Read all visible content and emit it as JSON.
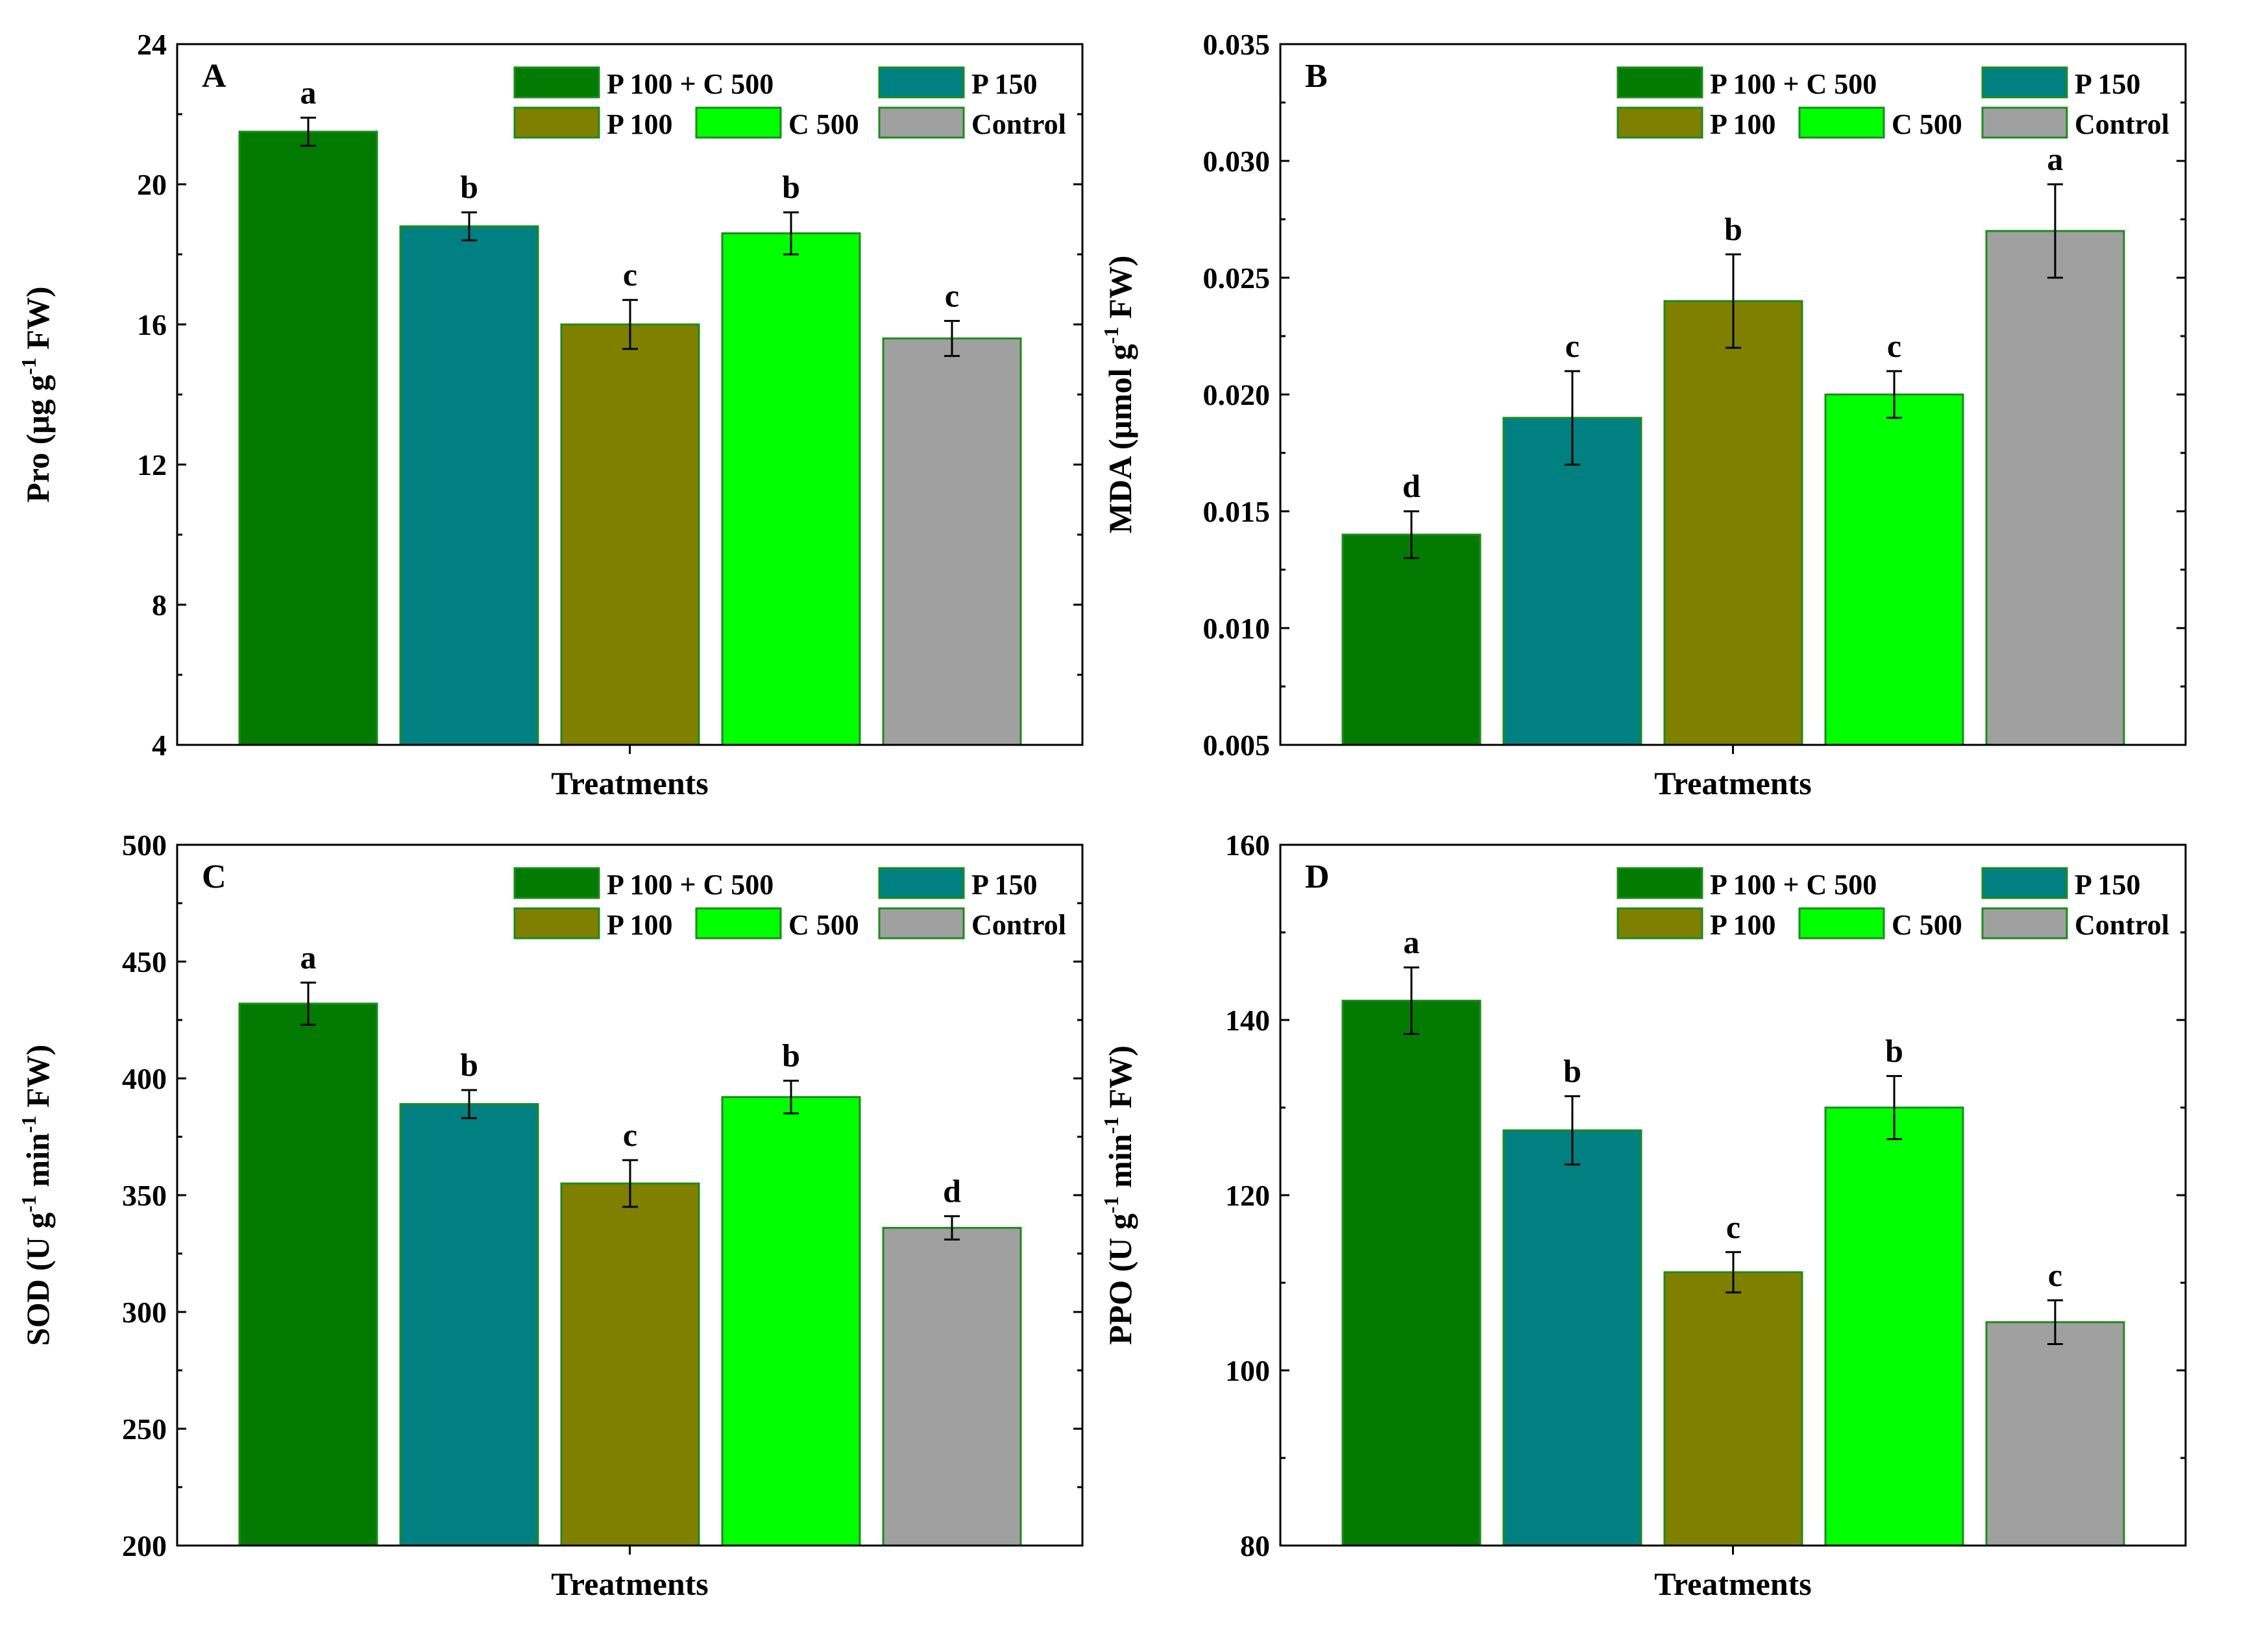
{
  "colors": {
    "P 100 + C 500": "#037b03",
    "P 150": "#008080",
    "P 100": "#808000",
    "C 500": "#00ff00",
    "Control": "#a0a0a0",
    "bar_edge": "#1e8a1e"
  },
  "chart_data": [
    {
      "type": "bar",
      "panel": "A",
      "title": "",
      "xlabel": "Treatments",
      "ylabel": {
        "main": "Pro (μg g",
        "sup": "-1",
        "tail": " FW)"
      },
      "ylim": [
        4,
        24
      ],
      "yticks": [
        4,
        8,
        12,
        16,
        20,
        24
      ],
      "yticklabels": [
        "4",
        "8",
        "12",
        "16",
        "20",
        "24"
      ],
      "categories": [
        "P 100 + C 500",
        "P 150",
        "P 100",
        "C 500",
        "Control"
      ],
      "values": [
        21.5,
        18.8,
        16.0,
        18.6,
        15.6
      ],
      "errors": [
        0.4,
        0.4,
        0.7,
        0.6,
        0.5
      ],
      "significance": [
        "a",
        "b",
        "c",
        "b",
        "c"
      ],
      "legend": [
        "P 100 + C 500",
        "P 150",
        "P 100",
        "C 500",
        "Control"
      ]
    },
    {
      "type": "bar",
      "panel": "B",
      "title": "",
      "xlabel": "Treatments",
      "ylabel": {
        "main": "MDA (μmol g",
        "sup": "-1",
        "tail": " FW)"
      },
      "ylim": [
        0.005,
        0.035
      ],
      "yticks": [
        0.005,
        0.01,
        0.015,
        0.02,
        0.025,
        0.03,
        0.035
      ],
      "yticklabels": [
        "0.005",
        "0.010",
        "0.015",
        "0.020",
        "0.025",
        "0.030",
        "0.035"
      ],
      "categories": [
        "P 100 + C 500",
        "P 150",
        "P 100",
        "C 500",
        "Control"
      ],
      "values": [
        0.014,
        0.019,
        0.024,
        0.02,
        0.027
      ],
      "errors": [
        0.001,
        0.002,
        0.002,
        0.001,
        0.002
      ],
      "significance": [
        "d",
        "c",
        "b",
        "c",
        "a"
      ],
      "legend": [
        "P 100 + C 500",
        "P 150",
        "P 100",
        "C 500",
        "Control"
      ]
    },
    {
      "type": "bar",
      "panel": "C",
      "title": "",
      "xlabel": "Treatments",
      "ylabel": {
        "main": "SOD (U g",
        "sup": "-1",
        "mid": " min",
        "sup2": "-1",
        "tail": " FW)"
      },
      "ylim": [
        200,
        500
      ],
      "yticks": [
        200,
        250,
        300,
        350,
        400,
        450,
        500
      ],
      "yticklabels": [
        "200",
        "250",
        "300",
        "350",
        "400",
        "450",
        "500"
      ],
      "categories": [
        "P 100 + C 500",
        "P 150",
        "P 100",
        "C 500",
        "Control"
      ],
      "values": [
        432,
        389,
        355,
        392,
        336
      ],
      "errors": [
        9,
        6,
        10,
        7,
        5
      ],
      "significance": [
        "a",
        "b",
        "c",
        "b",
        "d"
      ],
      "legend": [
        "P 100 + C 500",
        "P 150",
        "P 100",
        "C 500",
        "Control"
      ]
    },
    {
      "type": "bar",
      "panel": "D",
      "title": "",
      "xlabel": "Treatments",
      "ylabel": {
        "main": "PPO (U g",
        "sup": "-1",
        "mid": " min",
        "sup2": "-1",
        "tail": " FW)"
      },
      "ylim": [
        80,
        160
      ],
      "yticks": [
        80,
        100,
        120,
        140,
        160
      ],
      "yticklabels": [
        "80",
        "100",
        "120",
        "140",
        "160"
      ],
      "categories": [
        "P 100 + C 500",
        "P 150",
        "P 100",
        "C 500",
        "Control"
      ],
      "values": [
        142.2,
        127.4,
        111.2,
        130.0,
        105.5
      ],
      "errors": [
        3.8,
        3.9,
        2.3,
        3.6,
        2.5
      ],
      "significance": [
        "a",
        "b",
        "c",
        "b",
        "c"
      ],
      "legend": [
        "P 100 + C 500",
        "P 150",
        "P 100",
        "C 500",
        "Control"
      ]
    }
  ]
}
